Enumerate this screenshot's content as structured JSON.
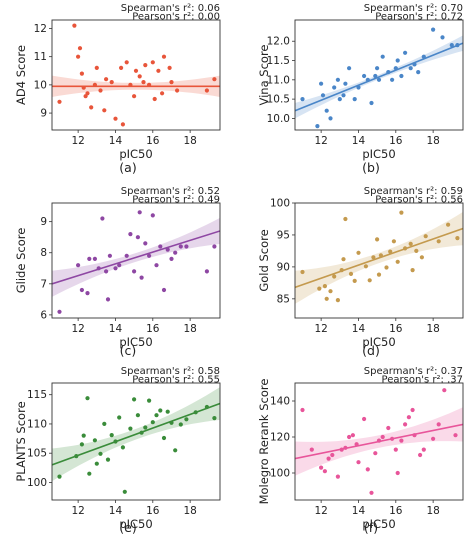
{
  "chart_data": [
    {
      "id": "a",
      "type": "scatter",
      "panel_label": "(a)",
      "color": "#e8553a",
      "xlabel": "pIC50",
      "ylabel": "AD4 Score",
      "xlim": [
        10.6,
        19.6
      ],
      "ylim": [
        8.4,
        12.3
      ],
      "xticks": [
        12,
        14,
        16,
        18
      ],
      "yticks": [
        9,
        10,
        11,
        12
      ],
      "spearman_label": "Spearman's r²: 0.06",
      "pearson_label": "Pearson's r²: 0.00",
      "fit": [
        [
          10.6,
          9.95
        ],
        [
          19.6,
          9.95
        ]
      ],
      "band": [
        0.38,
        0.12,
        0.38
      ],
      "points": [
        [
          11.0,
          9.4
        ],
        [
          11.8,
          12.1
        ],
        [
          12.0,
          11.0
        ],
        [
          12.1,
          11.3
        ],
        [
          12.2,
          10.4
        ],
        [
          12.3,
          9.9
        ],
        [
          12.4,
          9.6
        ],
        [
          12.5,
          9.7
        ],
        [
          12.7,
          9.2
        ],
        [
          12.9,
          10.0
        ],
        [
          13.0,
          10.6
        ],
        [
          13.2,
          9.8
        ],
        [
          13.4,
          9.1
        ],
        [
          13.5,
          10.2
        ],
        [
          13.8,
          10.1
        ],
        [
          14.0,
          8.8
        ],
        [
          14.3,
          10.6
        ],
        [
          14.4,
          8.6
        ],
        [
          14.6,
          10.8
        ],
        [
          14.8,
          10.0
        ],
        [
          15.0,
          9.6
        ],
        [
          15.1,
          10.5
        ],
        [
          15.3,
          10.3
        ],
        [
          15.5,
          10.1
        ],
        [
          15.6,
          10.7
        ],
        [
          15.8,
          10.0
        ],
        [
          16.0,
          10.8
        ],
        [
          16.1,
          9.5
        ],
        [
          16.3,
          10.5
        ],
        [
          16.5,
          9.7
        ],
        [
          16.6,
          11.0
        ],
        [
          16.9,
          10.6
        ],
        [
          17.0,
          10.1
        ],
        [
          17.3,
          9.8
        ],
        [
          18.9,
          9.8
        ],
        [
          19.3,
          10.2
        ]
      ]
    },
    {
      "id": "b",
      "type": "scatter",
      "panel_label": "(b)",
      "color": "#4a86c8",
      "xlabel": "pIC50",
      "ylabel": "Vina Score",
      "xlim": [
        10.6,
        19.6
      ],
      "ylim": [
        9.7,
        12.55
      ],
      "xticks": [
        12,
        14,
        16,
        18
      ],
      "yticks": [
        10.0,
        10.5,
        11.0,
        11.5,
        12.0
      ],
      "spearman_label": "Spearman's r²: 0.70",
      "pearson_label": "Pearson's r²: 0.72",
      "fit": [
        [
          10.6,
          10.2
        ],
        [
          19.6,
          11.95
        ]
      ],
      "band": [
        0.2,
        0.06,
        0.2
      ],
      "points": [
        [
          11.0,
          10.5
        ],
        [
          11.8,
          9.8
        ],
        [
          12.0,
          10.9
        ],
        [
          12.1,
          10.6
        ],
        [
          12.3,
          10.2
        ],
        [
          12.5,
          10.0
        ],
        [
          12.7,
          10.8
        ],
        [
          12.9,
          11.0
        ],
        [
          13.0,
          10.5
        ],
        [
          13.2,
          10.6
        ],
        [
          13.3,
          10.9
        ],
        [
          13.5,
          11.3
        ],
        [
          13.8,
          10.5
        ],
        [
          14.0,
          10.8
        ],
        [
          14.3,
          11.1
        ],
        [
          14.5,
          11.0
        ],
        [
          14.7,
          10.4
        ],
        [
          14.9,
          11.1
        ],
        [
          15.0,
          11.3
        ],
        [
          15.1,
          11.0
        ],
        [
          15.3,
          11.6
        ],
        [
          15.6,
          11.2
        ],
        [
          15.8,
          11.0
        ],
        [
          16.0,
          11.3
        ],
        [
          16.1,
          11.5
        ],
        [
          16.3,
          11.1
        ],
        [
          16.5,
          11.7
        ],
        [
          16.8,
          11.3
        ],
        [
          17.0,
          11.4
        ],
        [
          17.2,
          11.2
        ],
        [
          17.5,
          11.6
        ],
        [
          18.0,
          12.3
        ],
        [
          18.5,
          12.1
        ],
        [
          19.0,
          11.9
        ],
        [
          19.3,
          11.9
        ]
      ]
    },
    {
      "id": "c",
      "type": "scatter",
      "panel_label": "(c)",
      "color": "#8e47a3",
      "xlabel": "pIC50",
      "ylabel": "Glide Score",
      "xlim": [
        10.6,
        19.6
      ],
      "ylim": [
        5.9,
        9.6
      ],
      "xticks": [
        12,
        14,
        16,
        18
      ],
      "yticks": [
        6,
        7,
        8,
        9
      ],
      "spearman_label": "Spearman's r²: 0.52",
      "pearson_label": "Pearson's r²: 0.49",
      "fit": [
        [
          10.6,
          7.0
        ],
        [
          19.6,
          8.7
        ]
      ],
      "band": [
        0.42,
        0.14,
        0.42
      ],
      "points": [
        [
          11.0,
          6.1
        ],
        [
          12.0,
          7.6
        ],
        [
          12.2,
          6.8
        ],
        [
          12.5,
          6.7
        ],
        [
          12.6,
          7.8
        ],
        [
          12.9,
          7.8
        ],
        [
          13.1,
          7.5
        ],
        [
          13.3,
          9.1
        ],
        [
          13.5,
          7.4
        ],
        [
          13.6,
          6.5
        ],
        [
          13.7,
          7.9
        ],
        [
          14.0,
          7.5
        ],
        [
          14.2,
          7.6
        ],
        [
          14.6,
          7.9
        ],
        [
          14.8,
          8.6
        ],
        [
          15.0,
          7.4
        ],
        [
          15.2,
          8.5
        ],
        [
          15.3,
          9.3
        ],
        [
          15.4,
          7.2
        ],
        [
          15.6,
          8.3
        ],
        [
          15.8,
          7.9
        ],
        [
          16.0,
          9.2
        ],
        [
          16.2,
          7.6
        ],
        [
          16.4,
          8.2
        ],
        [
          16.6,
          6.8
        ],
        [
          16.8,
          8.1
        ],
        [
          17.0,
          7.8
        ],
        [
          17.2,
          8.0
        ],
        [
          17.5,
          8.2
        ],
        [
          17.8,
          8.2
        ],
        [
          18.9,
          7.4
        ],
        [
          19.3,
          8.2
        ]
      ]
    },
    {
      "id": "d",
      "type": "scatter",
      "panel_label": "(d)",
      "color": "#c49a4e",
      "xlabel": "pIC50",
      "ylabel": "Gold Score",
      "xlim": [
        10.6,
        19.6
      ],
      "ylim": [
        82,
        100
      ],
      "xticks": [
        12,
        14,
        16,
        18
      ],
      "yticks": [
        85,
        90,
        95,
        100
      ],
      "spearman_label": "Spearman's r²: 0.59",
      "pearson_label": "Pearson's r²: 0.56",
      "fit": [
        [
          10.6,
          86.8
        ],
        [
          19.6,
          96.0
        ]
      ],
      "band": [
        2.6,
        0.8,
        2.6
      ],
      "points": [
        [
          11.0,
          89.2
        ],
        [
          11.9,
          86.6
        ],
        [
          12.2,
          87.0
        ],
        [
          12.3,
          85.0
        ],
        [
          12.5,
          86.2
        ],
        [
          12.7,
          88.5
        ],
        [
          12.9,
          84.8
        ],
        [
          13.1,
          89.5
        ],
        [
          13.2,
          91.2
        ],
        [
          13.3,
          97.5
        ],
        [
          13.6,
          88.9
        ],
        [
          13.8,
          87.8
        ],
        [
          14.0,
          92.2
        ],
        [
          14.4,
          90.1
        ],
        [
          14.6,
          87.9
        ],
        [
          14.8,
          91.5
        ],
        [
          15.0,
          94.3
        ],
        [
          15.1,
          88.8
        ],
        [
          15.2,
          91.8
        ],
        [
          15.5,
          89.9
        ],
        [
          15.7,
          92.4
        ],
        [
          15.9,
          94.0
        ],
        [
          16.1,
          90.8
        ],
        [
          16.3,
          98.5
        ],
        [
          16.5,
          92.9
        ],
        [
          16.8,
          93.6
        ],
        [
          16.9,
          89.5
        ],
        [
          17.1,
          92.5
        ],
        [
          17.4,
          91.5
        ],
        [
          17.6,
          94.8
        ],
        [
          18.3,
          94.0
        ],
        [
          18.8,
          96.6
        ],
        [
          19.3,
          94.5
        ]
      ]
    },
    {
      "id": "e",
      "type": "scatter",
      "panel_label": "(e)",
      "color": "#3a8c3a",
      "xlabel": "pIC50",
      "ylabel": "PLANTS Score",
      "xlim": [
        10.6,
        19.6
      ],
      "ylim": [
        97,
        117
      ],
      "xticks": [
        12,
        14,
        16,
        18
      ],
      "yticks": [
        100,
        105,
        110,
        115
      ],
      "spearman_label": "Spearman's r²: 0.58",
      "pearson_label": "Pearson's r²: 0.55",
      "fit": [
        [
          10.6,
          103.0
        ],
        [
          19.6,
          113.5
        ]
      ],
      "band": [
        2.8,
        0.9,
        2.8
      ],
      "points": [
        [
          11.0,
          101.0
        ],
        [
          11.9,
          104.5
        ],
        [
          12.2,
          106.5
        ],
        [
          12.3,
          108.0
        ],
        [
          12.5,
          114.4
        ],
        [
          12.6,
          101.5
        ],
        [
          12.9,
          107.2
        ],
        [
          13.0,
          103.2
        ],
        [
          13.2,
          104.9
        ],
        [
          13.4,
          110.0
        ],
        [
          13.6,
          103.9
        ],
        [
          13.8,
          108.1
        ],
        [
          14.0,
          107.0
        ],
        [
          14.2,
          111.1
        ],
        [
          14.4,
          106.0
        ],
        [
          14.5,
          98.4
        ],
        [
          14.8,
          109.2
        ],
        [
          15.0,
          114.2
        ],
        [
          15.2,
          111.5
        ],
        [
          15.4,
          108.5
        ],
        [
          15.6,
          109.4
        ],
        [
          15.8,
          114.0
        ],
        [
          16.0,
          110.3
        ],
        [
          16.2,
          111.5
        ],
        [
          16.4,
          112.3
        ],
        [
          16.6,
          107.6
        ],
        [
          16.8,
          112.1
        ],
        [
          17.0,
          110.2
        ],
        [
          17.2,
          105.5
        ],
        [
          17.5,
          109.9
        ],
        [
          17.8,
          110.8
        ],
        [
          18.3,
          112.0
        ],
        [
          18.9,
          112.9
        ],
        [
          19.3,
          111.0
        ]
      ]
    },
    {
      "id": "f",
      "type": "scatter",
      "panel_label": "(f)",
      "color": "#e8559a",
      "xlabel": "pIC50",
      "ylabel": "Molegro Rerank Score",
      "xlim": [
        10.6,
        19.6
      ],
      "ylim": [
        85,
        150
      ],
      "xticks": [
        12,
        14,
        16,
        18
      ],
      "yticks": [
        100,
        120,
        140
      ],
      "spearman_label": "Spearman's r²: 0.37",
      "pearson_label": "Pearson's r²: .37",
      "fit": [
        [
          10.6,
          108.0
        ],
        [
          19.6,
          127.0
        ]
      ],
      "band": [
        9.5,
        3.5,
        9.5
      ],
      "points": [
        [
          11.0,
          135.0
        ],
        [
          11.5,
          113.0
        ],
        [
          12.0,
          103.0
        ],
        [
          12.2,
          101.0
        ],
        [
          12.4,
          108.0
        ],
        [
          12.6,
          110.0
        ],
        [
          12.9,
          98.0
        ],
        [
          13.1,
          113.0
        ],
        [
          13.3,
          114.0
        ],
        [
          13.5,
          120.0
        ],
        [
          13.7,
          121.0
        ],
        [
          13.9,
          116.0
        ],
        [
          14.0,
          106.0
        ],
        [
          14.3,
          130.0
        ],
        [
          14.5,
          102.0
        ],
        [
          14.7,
          89.0
        ],
        [
          14.9,
          111.0
        ],
        [
          15.1,
          118.0
        ],
        [
          15.3,
          120.0
        ],
        [
          15.6,
          125.0
        ],
        [
          15.8,
          119.0
        ],
        [
          16.0,
          113.0
        ],
        [
          16.1,
          100.0
        ],
        [
          16.3,
          118.0
        ],
        [
          16.5,
          127.0
        ],
        [
          16.7,
          131.0
        ],
        [
          16.9,
          135.0
        ],
        [
          17.0,
          121.0
        ],
        [
          17.3,
          110.0
        ],
        [
          17.5,
          113.0
        ],
        [
          18.0,
          119.0
        ],
        [
          18.3,
          127.0
        ],
        [
          18.6,
          146.0
        ],
        [
          19.2,
          121.0
        ]
      ]
    }
  ]
}
